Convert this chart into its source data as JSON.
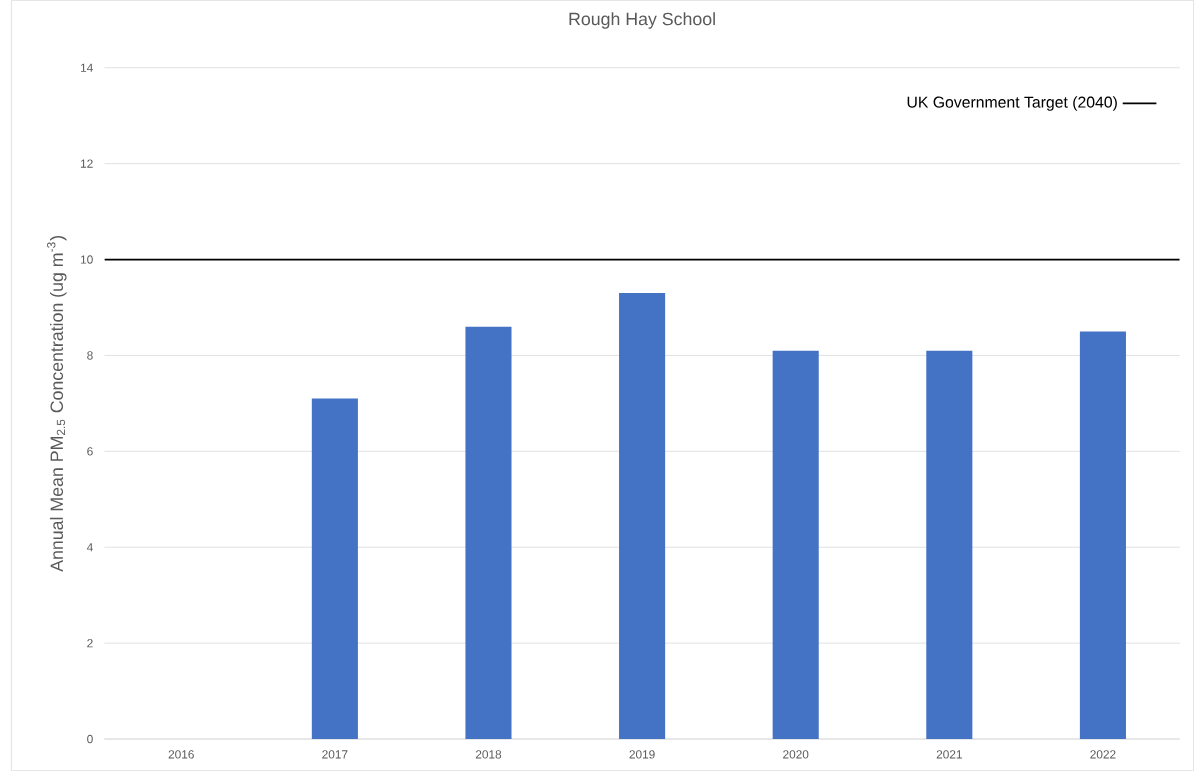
{
  "chart_data": {
    "type": "bar",
    "title": "Rough Hay School",
    "ylabel": "Annual Mean PM$_{2.5}$ Concentration (ug m$^{-3}$)",
    "categories": [
      "2016",
      "2017",
      "2018",
      "2019",
      "2020",
      "2021",
      "2022"
    ],
    "values": [
      null,
      7.1,
      8.6,
      9.3,
      8.1,
      8.1,
      8.5
    ],
    "color": "#4472c4",
    "ylim": [
      0,
      14
    ],
    "yticks": [
      0,
      2,
      4,
      6,
      8,
      10,
      12,
      14
    ],
    "grid": "y",
    "legend": "top right",
    "ref_lines": [
      {
        "axis": "y",
        "value": 10,
        "label": "UK Government Target (2040)",
        "color": "#000000"
      }
    ]
  }
}
